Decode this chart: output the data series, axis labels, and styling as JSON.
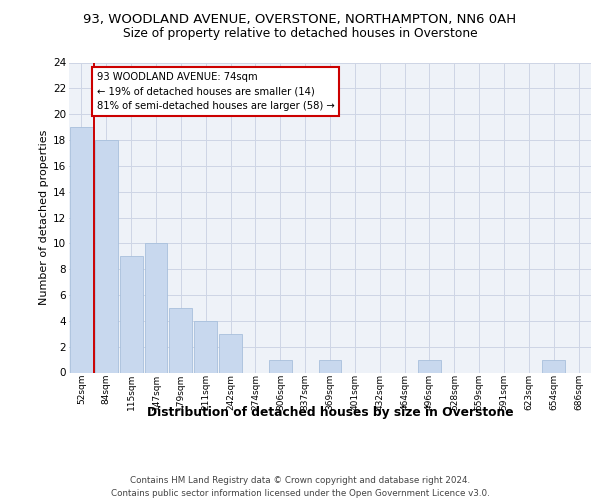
{
  "title1": "93, WOODLAND AVENUE, OVERSTONE, NORTHAMPTON, NN6 0AH",
  "title2": "Size of property relative to detached houses in Overstone",
  "xlabel": "Distribution of detached houses by size in Overstone",
  "ylabel": "Number of detached properties",
  "bin_labels": [
    "52sqm",
    "84sqm",
    "115sqm",
    "147sqm",
    "179sqm",
    "211sqm",
    "242sqm",
    "274sqm",
    "306sqm",
    "337sqm",
    "369sqm",
    "401sqm",
    "432sqm",
    "464sqm",
    "496sqm",
    "528sqm",
    "559sqm",
    "591sqm",
    "623sqm",
    "654sqm",
    "686sqm"
  ],
  "bar_values": [
    19,
    18,
    9,
    10,
    5,
    4,
    3,
    0,
    1,
    0,
    1,
    0,
    0,
    0,
    1,
    0,
    0,
    0,
    0,
    1,
    0
  ],
  "bar_color": "#c8d8ee",
  "bar_edge_color": "#a8c0dc",
  "annotation_text": "93 WOODLAND AVENUE: 74sqm\n← 19% of detached houses are smaller (14)\n81% of semi-detached houses are larger (58) →",
  "annotation_box_facecolor": "white",
  "annotation_box_edgecolor": "#cc0000",
  "vline_color": "#cc0000",
  "vline_x": 0.52,
  "ylim_max": 24,
  "yticks": [
    0,
    2,
    4,
    6,
    8,
    10,
    12,
    14,
    16,
    18,
    20,
    22,
    24
  ],
  "footer_text": "Contains HM Land Registry data © Crown copyright and database right 2024.\nContains public sector information licensed under the Open Government Licence v3.0.",
  "bg_color": "#eef2f8",
  "grid_color": "#cdd5e5",
  "title1_fontsize": 9.5,
  "title2_fontsize": 8.8,
  "xlabel_fontsize": 8.8,
  "ylabel_fontsize": 8.0,
  "tick_fontsize": 6.5,
  "ytick_fontsize": 7.5,
  "footer_fontsize": 6.3,
  "annotation_fontsize": 7.2
}
